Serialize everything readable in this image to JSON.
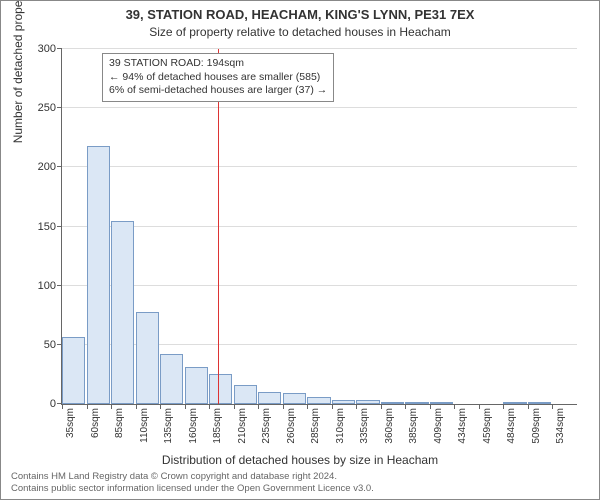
{
  "title_line1": "39, STATION ROAD, HEACHAM, KING'S LYNN, PE31 7EX",
  "title_line2": "Size of property relative to detached houses in Heacham",
  "ylabel": "Number of detached properties",
  "xlabel": "Distribution of detached houses by size in Heacham",
  "footer_line1": "Contains HM Land Registry data © Crown copyright and database right 2024.",
  "footer_line2": "Contains public sector information licensed under the Open Government Licence v3.0.",
  "annotation": {
    "line1": "39 STATION ROAD: 194sqm",
    "line2": "← 94% of detached houses are smaller (585)",
    "line3": "6% of semi-detached houses are larger (37) →"
  },
  "chart": {
    "type": "histogram",
    "ylim": [
      0,
      300
    ],
    "yticks": [
      0,
      50,
      100,
      150,
      200,
      250,
      300
    ],
    "categories": [
      "35sqm",
      "60sqm",
      "85sqm",
      "110sqm",
      "135sqm",
      "160sqm",
      "185sqm",
      "210sqm",
      "235sqm",
      "260sqm",
      "285sqm",
      "310sqm",
      "335sqm",
      "360sqm",
      "385sqm",
      "409sqm",
      "434sqm",
      "459sqm",
      "484sqm",
      "509sqm",
      "534sqm"
    ],
    "values": [
      57,
      218,
      155,
      78,
      42,
      31,
      25,
      16,
      10,
      9,
      6,
      3,
      3,
      2,
      1,
      1,
      0,
      0,
      1,
      2,
      0
    ],
    "bar_fill": "#dbe7f5",
    "bar_stroke": "#7a9cc6",
    "grid_color": "#dddddd",
    "background": "#ffffff",
    "reference_line_color": "#d33333",
    "reference_value_sqm": 194,
    "title_fontsize": 13,
    "subtitle_fontsize": 12,
    "label_fontsize": 12,
    "tick_fontsize": 11
  }
}
